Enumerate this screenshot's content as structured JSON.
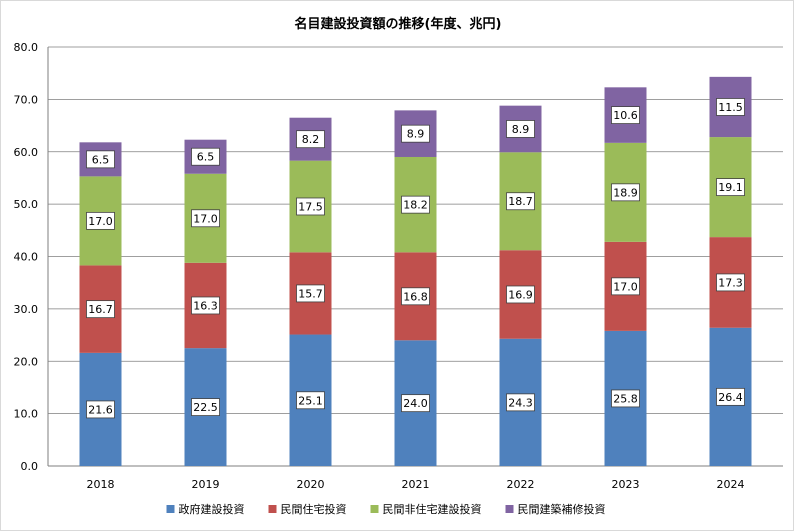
{
  "chart_data": {
    "type": "bar",
    "stacked": true,
    "title": "名目建設投資額の推移(年度、兆円)",
    "categories": [
      "2018",
      "2019",
      "2020",
      "2021",
      "2022",
      "2023",
      "2024"
    ],
    "series": [
      {
        "name": "政府建設投資",
        "color": "#4f81bd",
        "values": [
          21.6,
          22.5,
          25.1,
          24.0,
          24.3,
          25.8,
          26.4
        ]
      },
      {
        "name": "民間住宅投資",
        "color": "#c0504d",
        "values": [
          16.7,
          16.3,
          15.7,
          16.8,
          16.9,
          17.0,
          17.3
        ]
      },
      {
        "name": "民間非住宅建設投資",
        "color": "#9bbb59",
        "values": [
          17.0,
          17.0,
          17.5,
          18.2,
          18.7,
          18.9,
          19.1
        ]
      },
      {
        "name": "民間建築補修投資",
        "color": "#8064a2",
        "values": [
          6.5,
          6.5,
          8.2,
          8.9,
          8.9,
          10.6,
          11.5
        ]
      }
    ],
    "ylim": [
      0,
      80
    ],
    "yticks": [
      "0.0",
      "10.0",
      "20.0",
      "30.0",
      "40.0",
      "50.0",
      "60.0",
      "70.0",
      "80.0"
    ],
    "grid": true,
    "legend_position": "bottom"
  }
}
